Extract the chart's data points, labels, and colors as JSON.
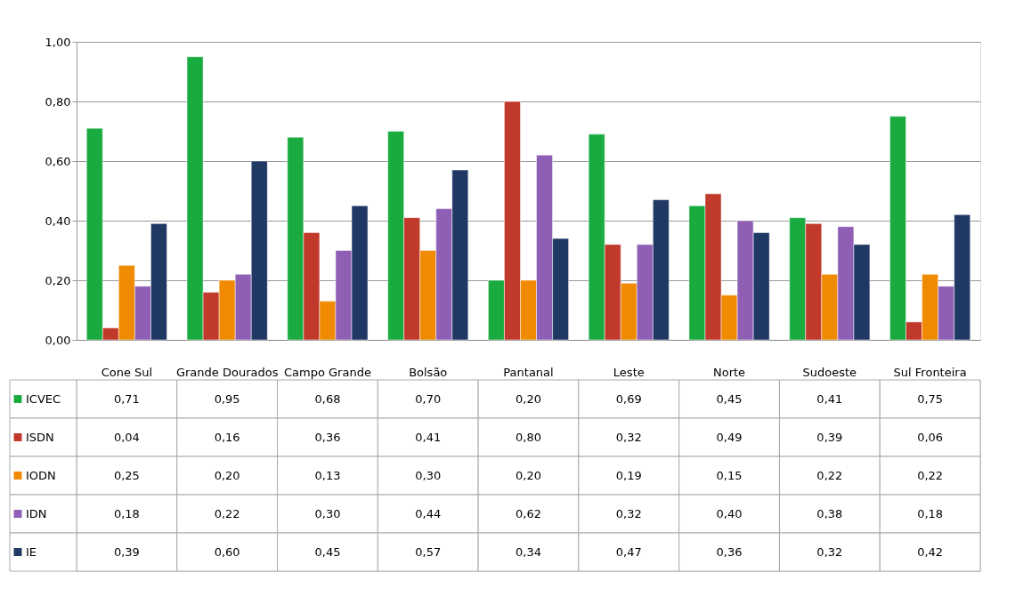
{
  "chart_data": {
    "type": "bar",
    "categories": [
      "Cone Sul",
      "Grande Dourados",
      "Campo Grande",
      "Bolsão",
      "Pantanal",
      "Leste",
      "Norte",
      "Sudoeste",
      "Sul Fronteira"
    ],
    "series": [
      {
        "name": "ICVEC",
        "color": "#1aab40",
        "values": [
          0.71,
          0.95,
          0.68,
          0.7,
          0.2,
          0.69,
          0.45,
          0.41,
          0.75
        ],
        "value_labels": [
          "0,71",
          "0,95",
          "0,68",
          "0,70",
          "0,20",
          "0,69",
          "0,45",
          "0,41",
          "0,75"
        ]
      },
      {
        "name": "ISDN",
        "color": "#c0392b",
        "values": [
          0.04,
          0.16,
          0.36,
          0.41,
          0.8,
          0.32,
          0.49,
          0.39,
          0.06
        ],
        "value_labels": [
          "0,04",
          "0,16",
          "0,36",
          "0,41",
          "0,80",
          "0,32",
          "0,49",
          "0,39",
          "0,06"
        ]
      },
      {
        "name": "IODN",
        "color": "#f08a00",
        "values": [
          0.25,
          0.2,
          0.13,
          0.3,
          0.2,
          0.19,
          0.15,
          0.22,
          0.22
        ],
        "value_labels": [
          "0,25",
          "0,20",
          "0,13",
          "0,30",
          "0,20",
          "0,19",
          "0,15",
          "0,22",
          "0,22"
        ]
      },
      {
        "name": "IDN",
        "color": "#8e5fb5",
        "values": [
          0.18,
          0.22,
          0.3,
          0.44,
          0.62,
          0.32,
          0.4,
          0.38,
          0.18
        ],
        "value_labels": [
          "0,18",
          "0,22",
          "0,30",
          "0,44",
          "0,62",
          "0,32",
          "0,40",
          "0,38",
          "0,18"
        ]
      },
      {
        "name": "IE",
        "color": "#1f3864",
        "values": [
          0.39,
          0.6,
          0.45,
          0.57,
          0.34,
          0.47,
          0.36,
          0.32,
          0.42
        ],
        "value_labels": [
          "0,39",
          "0,60",
          "0,45",
          "0,57",
          "0,34",
          "0,47",
          "0,36",
          "0,32",
          "0,42"
        ]
      }
    ],
    "ylim": [
      0,
      1
    ],
    "yticks": [
      {
        "value": 0,
        "label": "0,00"
      },
      {
        "value": 0.2,
        "label": "0,20"
      },
      {
        "value": 0.4,
        "label": "0,40"
      },
      {
        "value": 0.6,
        "label": "0,60"
      },
      {
        "value": 0.8,
        "label": "0,80"
      },
      {
        "value": 1,
        "label": "1,00"
      }
    ],
    "grid": "y",
    "legend": "bottom left"
  }
}
